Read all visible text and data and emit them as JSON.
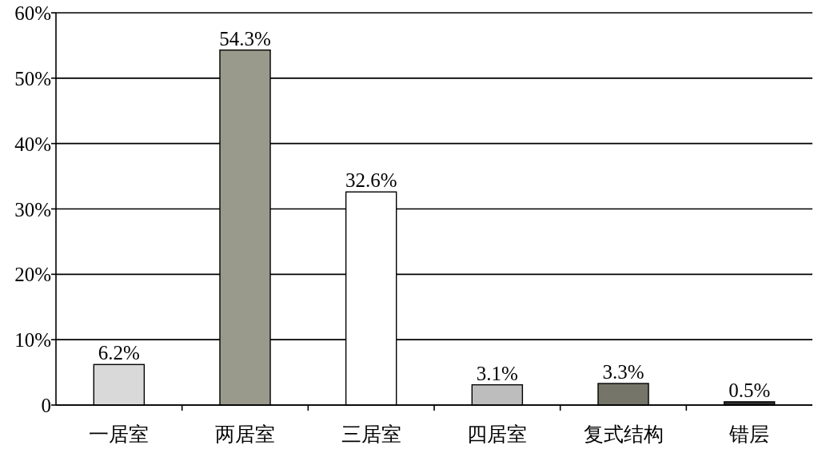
{
  "chart_data": {
    "type": "bar",
    "categories": [
      "一居室",
      "两居室",
      "三居室",
      "四居室",
      "复式结构",
      "错层"
    ],
    "values": [
      6.2,
      54.3,
      32.6,
      3.1,
      3.3,
      0.5
    ],
    "colors": [
      "#d9d9d9",
      "#9a9a8c",
      "#ffffff",
      "#bdbdbd",
      "#75756a",
      "#2f2f2f"
    ],
    "value_labels": [
      "6.2%",
      "54.3%",
      "32.6%",
      "3.1%",
      "3.3%",
      "0.5%"
    ],
    "ylim": [
      0,
      60
    ],
    "yticks": [
      {
        "value": 0,
        "label": "0"
      },
      {
        "value": 10,
        "label": "10%"
      },
      {
        "value": 20,
        "label": "20%"
      },
      {
        "value": 30,
        "label": "30%"
      },
      {
        "value": 40,
        "label": "40%"
      },
      {
        "value": 50,
        "label": "50%"
      },
      {
        "value": 60,
        "label": "60%"
      }
    ],
    "grid": "y"
  }
}
